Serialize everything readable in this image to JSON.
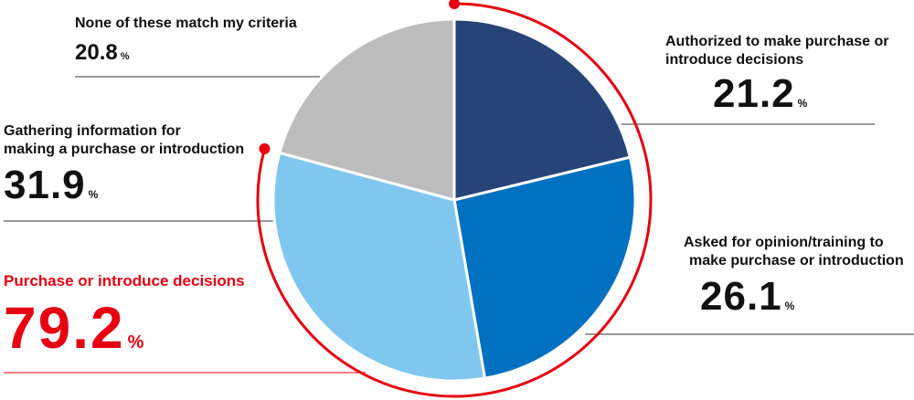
{
  "chart_data": {
    "type": "pie",
    "unit": "%",
    "slices": [
      {
        "label": "Authorized to make purchase or\nintroduce decisions",
        "value": 21.2,
        "value_text": "21.2",
        "color": "#264478"
      },
      {
        "label": "Asked for opinion/training to\nmake purchase or introduction",
        "value": 26.1,
        "value_text": "26.1",
        "color": "#0070c0"
      },
      {
        "label": "Gathering  information for\nmaking a purchase or introduction",
        "value": 31.9,
        "value_text": "31.9",
        "color": "#7fc7ee"
      },
      {
        "label": "None of these match my criteria",
        "value": 20.8,
        "value_text": "20.8",
        "color": "#bdbdbd"
      }
    ],
    "highlight": {
      "label": "Purchase or introduce decisions",
      "value": 79.2,
      "value_text": "79.2",
      "color": "#e60012"
    }
  }
}
